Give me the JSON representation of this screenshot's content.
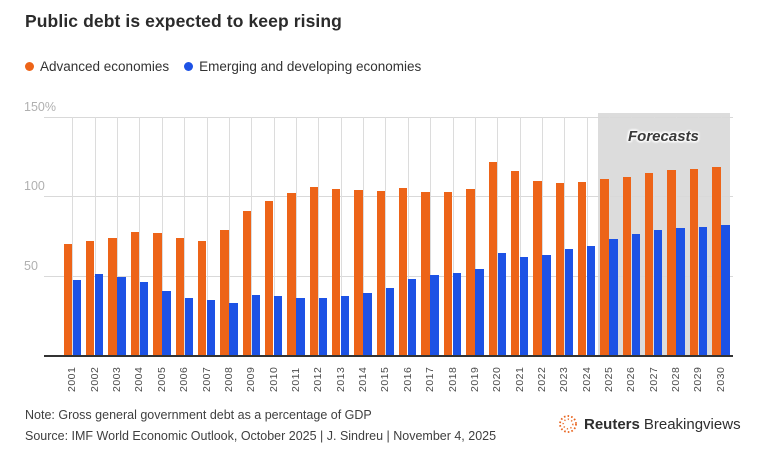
{
  "title": "Public debt is expected to keep rising",
  "legend": [
    {
      "label": "Advanced economies",
      "color": "#ED6418"
    },
    {
      "label": "Emerging and developing economies",
      "color": "#1D52E5"
    }
  ],
  "chart_data": {
    "type": "bar",
    "title": "Public debt is expected to keep rising",
    "categories": [
      "2001",
      "2002",
      "2003",
      "2004",
      "2005",
      "2006",
      "2007",
      "2008",
      "2009",
      "2010",
      "2011",
      "2012",
      "2013",
      "2014",
      "2015",
      "2016",
      "2017",
      "2018",
      "2019",
      "2020",
      "2021",
      "2022",
      "2023",
      "2024",
      "2025",
      "2026",
      "2027",
      "2028",
      "2029",
      "2030"
    ],
    "series": [
      {
        "name": "Advanced economies",
        "color": "#ED6418",
        "values": [
          70,
          72,
          73.5,
          77.5,
          77,
          74,
          72,
          79,
          91,
          97,
          102,
          106,
          104.5,
          104,
          103.5,
          105.5,
          103,
          103,
          104.5,
          122,
          116,
          109.5,
          108.5,
          109,
          111,
          112.5,
          114.5,
          116.5,
          117.5,
          118.5
        ]
      },
      {
        "name": "Emerging and developing economies",
        "color": "#1D52E5",
        "values": [
          47,
          51,
          49,
          46,
          40.5,
          36,
          34.5,
          33,
          38,
          37,
          36,
          36,
          37.5,
          39,
          42.5,
          48,
          50.5,
          52,
          54,
          64,
          62,
          63,
          67,
          69,
          73,
          76.5,
          78.5,
          80,
          81,
          82
        ]
      }
    ],
    "ylim": [
      0,
      150
    ],
    "yticks": [
      50,
      100,
      150
    ],
    "ytick_labels": [
      "50",
      "100",
      "150%"
    ],
    "unit": "percent of GDP",
    "grid": true,
    "legend_position": "top",
    "forecast_from": "2025",
    "forecast_label": "Forecasts",
    "forecast_bg": "#dcdcdc"
  },
  "note": "Note: Gross general government debt as a percentage of GDP",
  "source": "Source: IMF World Economic Outlook, October 2025 | J. Sindreu | November 4, 2025",
  "footer_logo": {
    "brand_bold": "Reuters",
    "brand_regular": "Breakingviews"
  }
}
